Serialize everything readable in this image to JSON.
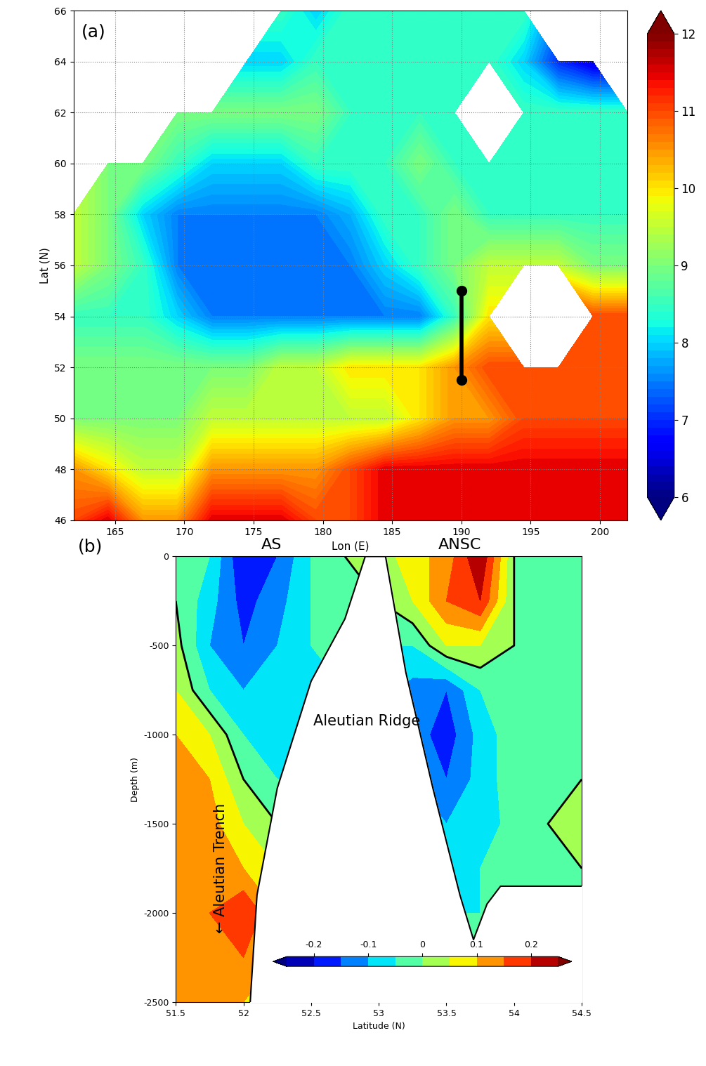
{
  "chart_data": [
    {
      "type": "map",
      "panel_label": "(a)",
      "x_label": "Lon (E)",
      "y_label": "Lat (N)",
      "xlim": [
        162,
        202
      ],
      "ylim": [
        46,
        66
      ],
      "xticks": [
        165,
        170,
        175,
        180,
        185,
        190,
        195,
        200
      ],
      "yticks": [
        46,
        48,
        50,
        52,
        54,
        56,
        58,
        60,
        62,
        64,
        66
      ],
      "grid": true,
      "lon": [
        162,
        164.5,
        167,
        169.5,
        172,
        174.5,
        177,
        179.5,
        182,
        184.5,
        187,
        189.5,
        192,
        194.5,
        197,
        199.5,
        202
      ],
      "lat": [
        46,
        48,
        50,
        52,
        54,
        56,
        58,
        60,
        62,
        64,
        66
      ],
      "cells": [
        [
          11,
          11.5,
          10.5,
          10.5,
          11.5,
          11.5,
          11.5,
          11,
          11,
          11.5,
          11.5,
          11.5,
          11.5,
          11.5,
          11.5,
          11.5,
          11.5
        ],
        [
          10.5,
          10,
          9.5,
          9.5,
          10.5,
          10.5,
          10.5,
          10.5,
          11,
          11.5,
          11.5,
          11.5,
          11.5,
          11.5,
          11.5,
          11.5,
          11.5
        ],
        [
          9,
          9,
          9,
          9,
          9.5,
          9.5,
          9.5,
          9.5,
          9.5,
          9.5,
          10,
          10.5,
          10.5,
          11,
          11,
          11,
          11
        ],
        [
          9,
          9,
          9,
          9,
          9,
          9,
          9.5,
          9.5,
          10,
          10,
          10,
          10.5,
          11,
          11,
          11,
          11,
          11
        ],
        [
          8.5,
          8.5,
          8.5,
          8,
          7.5,
          7.5,
          7.5,
          7.5,
          7.5,
          7.5,
          7.5,
          8.5,
          10,
          null,
          null,
          11,
          11
        ],
        [
          9.5,
          9,
          8.5,
          7.5,
          7.5,
          7.5,
          7.5,
          7.5,
          7.5,
          8,
          8.5,
          9,
          9.5,
          9.5,
          9.5,
          9,
          9
        ],
        [
          9.5,
          9,
          8,
          7.5,
          7.5,
          7.5,
          7.5,
          7.5,
          7.8,
          8.5,
          8.5,
          9,
          8.5,
          8.5,
          8.5,
          8.5,
          8.5
        ],
        [
          null,
          9,
          9,
          8.5,
          8,
          8,
          8,
          8.5,
          8.5,
          8.5,
          9,
          8.5,
          8.5,
          8.5,
          8.5,
          8.5,
          8.5
        ],
        [
          null,
          null,
          null,
          9,
          9,
          9,
          9,
          9,
          8.5,
          8.5,
          8.5,
          8.5,
          null,
          8.5,
          8.5,
          8.5,
          8.5
        ],
        [
          null,
          null,
          null,
          null,
          null,
          8,
          8,
          8.5,
          8.5,
          8.5,
          8.5,
          8.5,
          8.5,
          8,
          7,
          6.5,
          null
        ],
        [
          null,
          null,
          null,
          null,
          null,
          null,
          8.5,
          8,
          8.5,
          8.5,
          8.5,
          8.5,
          8.5,
          8.5,
          null,
          null,
          null
        ]
      ],
      "colorbar_range": [
        6,
        12
      ],
      "colorbar_ticks": [
        6,
        7,
        8,
        9,
        10,
        11,
        12
      ],
      "section": {
        "lon": [
          190,
          190
        ],
        "lat": [
          51.5,
          55
        ]
      }
    },
    {
      "type": "contour",
      "panel_label": "(b)",
      "x_label": "Latitude (N)",
      "y_label": "Depth (m)",
      "xlim": [
        51.5,
        54.5
      ],
      "ylim": [
        -2500,
        0
      ],
      "xticks": [
        51.5,
        52,
        52.5,
        53,
        53.5,
        54,
        54.5
      ],
      "yticks": [
        -2500,
        -2000,
        -1500,
        -1000,
        -500,
        0
      ],
      "annotations": [
        "AS",
        "ANSC",
        "Aleutian Ridge",
        "← Aleutian Trench"
      ],
      "latitude": [
        51.5,
        51.75,
        52.0,
        52.25,
        52.5,
        52.75,
        53.0,
        53.25,
        53.5,
        53.75,
        54.0,
        54.25,
        54.5
      ],
      "depth": [
        0,
        -250,
        -500,
        -750,
        -1000,
        -1250,
        -1500,
        -1750,
        -2000,
        -2250,
        -2500
      ],
      "cells": [
        [
          0.0,
          -0.05,
          -0.2,
          -0.15,
          -0.05,
          0.0,
          0.02,
          0.08,
          0.12,
          0.25,
          0.0,
          0.0,
          -0.02
        ],
        [
          0.0,
          -0.08,
          -0.17,
          -0.12,
          -0.05,
          0.0,
          0.0,
          0.05,
          0.15,
          0.2,
          0.0,
          -0.02,
          -0.02
        ],
        [
          0.02,
          -0.1,
          -0.15,
          -0.1,
          -0.05,
          0.0,
          -0.05,
          -0.05,
          0.05,
          0.05,
          0.0,
          -0.02,
          0.0
        ],
        [
          0.05,
          -0.05,
          -0.1,
          -0.08,
          -0.05,
          -0.05,
          -0.08,
          -0.12,
          -0.15,
          -0.05,
          0.0,
          -0.02,
          0.0
        ],
        [
          0.1,
          0.05,
          -0.05,
          -0.05,
          -0.05,
          -0.05,
          -0.08,
          -0.12,
          -0.18,
          -0.08,
          -0.02,
          0.0,
          0.0
        ],
        [
          0.12,
          0.1,
          0.0,
          -0.05,
          -0.05,
          -0.05,
          -0.08,
          -0.1,
          -0.15,
          -0.08,
          -0.02,
          0.0,
          0.0
        ],
        [
          0.15,
          0.12,
          0.05,
          0.0,
          0.0,
          0.0,
          -0.05,
          -0.08,
          -0.1,
          -0.08,
          -0.03,
          0.0,
          0.02
        ],
        [
          0.15,
          0.15,
          0.1,
          0.05,
          0.0,
          0.0,
          -0.03,
          -0.05,
          -0.08,
          -0.05,
          -0.03,
          0.0,
          0.0
        ],
        [
          0.12,
          0.15,
          0.2,
          0.1,
          0.0,
          0.0,
          0.0,
          -0.03,
          -0.05,
          -0.05,
          0.0,
          0.0,
          0.0
        ],
        [
          0.1,
          0.12,
          0.15,
          0.1,
          0.0,
          0.0,
          0.0,
          0.0,
          -0.03,
          -0.03,
          0.0,
          0.0,
          0.0
        ],
        [
          0.1,
          0.12,
          0.1,
          0.05,
          0.0,
          0.0,
          0.0,
          0.0,
          0.0,
          0.0,
          0.0,
          0.0,
          0.0
        ]
      ],
      "levels": [
        -0.25,
        -0.2,
        -0.15,
        -0.1,
        -0.05,
        0,
        0.05,
        0.1,
        0.15,
        0.2,
        0.25
      ],
      "contour_line": 0,
      "bottom": {
        "latitude": [
          52.05,
          52.1,
          52.25,
          52.5,
          52.75,
          52.9,
          53.05,
          53.2,
          53.4,
          53.6,
          53.7,
          53.8,
          53.9,
          54.0,
          54.5
        ],
        "depth": [
          -2500,
          -1900,
          -1300,
          -700,
          -350,
          0,
          0,
          -650,
          -1300,
          -1900,
          -2150,
          -1950,
          -1850,
          -1850,
          -1850
        ]
      },
      "colorbar_range": [
        -0.25,
        0.25
      ],
      "colorbar_ticks": [
        -0.2,
        -0.1,
        0,
        0.1,
        0.2
      ]
    }
  ]
}
